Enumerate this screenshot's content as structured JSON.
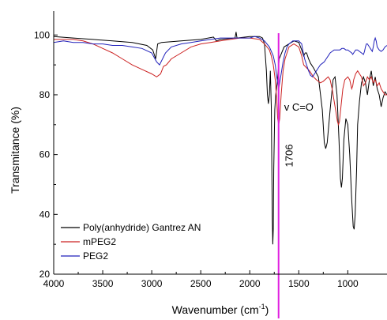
{
  "chart_data": {
    "type": "line",
    "xlabel": "Wavenumber (cm",
    "xlabel_sup": "-1",
    "xlabel_tail": ")",
    "ylabel": "Transmitance (%)",
    "xlim": [
      4000,
      600
    ],
    "ylim": [
      20,
      108
    ],
    "x_ticks": [
      "4000",
      "3500",
      "3000",
      "2500",
      "2000",
      "1500",
      "1000"
    ],
    "y_ticks": [
      "20",
      "40",
      "60",
      "80",
      "100"
    ],
    "annotations": {
      "marker_label": "1706",
      "marker_x": 1706,
      "band_label": "v C=O",
      "marker_color": "#e020e0"
    },
    "legend_position": "lower-left",
    "series": [
      {
        "name": "Poly(anhydride) Gantrez AN",
        "color": "#000000",
        "points": [
          [
            4000,
            99.5
          ],
          [
            3800,
            99
          ],
          [
            3600,
            98.5
          ],
          [
            3400,
            98
          ],
          [
            3200,
            97.5
          ],
          [
            3050,
            96.5
          ],
          [
            2990,
            95
          ],
          [
            2960,
            92
          ],
          [
            2940,
            97
          ],
          [
            2900,
            97.5
          ],
          [
            2700,
            98
          ],
          [
            2500,
            98.5
          ],
          [
            2370,
            99.3
          ],
          [
            2340,
            98
          ],
          [
            2300,
            98.5
          ],
          [
            2150,
            99
          ],
          [
            2140,
            101
          ],
          [
            2130,
            99
          ],
          [
            2000,
            99.5
          ],
          [
            1900,
            99.5
          ],
          [
            1870,
            99
          ],
          [
            1850,
            97
          ],
          [
            1830,
            88
          ],
          [
            1820,
            80
          ],
          [
            1810,
            77
          ],
          [
            1800,
            80
          ],
          [
            1790,
            88
          ],
          [
            1780,
            76
          ],
          [
            1775,
            55
          ],
          [
            1770,
            38
          ],
          [
            1765,
            30
          ],
          [
            1760,
            35
          ],
          [
            1755,
            55
          ],
          [
            1745,
            75
          ],
          [
            1735,
            80
          ],
          [
            1720,
            84
          ],
          [
            1700,
            92
          ],
          [
            1650,
            96
          ],
          [
            1600,
            97
          ],
          [
            1550,
            98
          ],
          [
            1500,
            97.5
          ],
          [
            1470,
            95
          ],
          [
            1450,
            93
          ],
          [
            1435,
            94
          ],
          [
            1420,
            94
          ],
          [
            1400,
            92
          ],
          [
            1380,
            90.5
          ],
          [
            1350,
            89
          ],
          [
            1300,
            86
          ],
          [
            1260,
            75
          ],
          [
            1240,
            64
          ],
          [
            1225,
            62
          ],
          [
            1210,
            64
          ],
          [
            1180,
            75
          ],
          [
            1150,
            85
          ],
          [
            1130,
            86
          ],
          [
            1110,
            80
          ],
          [
            1090,
            65
          ],
          [
            1075,
            52
          ],
          [
            1065,
            49
          ],
          [
            1055,
            52
          ],
          [
            1040,
            65
          ],
          [
            1020,
            72
          ],
          [
            1000,
            70
          ],
          [
            980,
            60
          ],
          [
            960,
            45
          ],
          [
            945,
            36
          ],
          [
            935,
            35
          ],
          [
            925,
            40
          ],
          [
            910,
            55
          ],
          [
            900,
            70
          ],
          [
            880,
            78
          ],
          [
            860,
            84
          ],
          [
            840,
            86
          ],
          [
            820,
            84
          ],
          [
            800,
            80
          ],
          [
            780,
            85
          ],
          [
            760,
            88
          ],
          [
            740,
            83
          ],
          [
            720,
            86
          ],
          [
            700,
            82
          ],
          [
            680,
            80
          ],
          [
            660,
            76
          ],
          [
            640,
            79
          ],
          [
            620,
            81
          ],
          [
            600,
            80
          ]
        ]
      },
      {
        "name": "mPEG2",
        "color": "#cc2222",
        "points": [
          [
            4000,
            98.5
          ],
          [
            3800,
            98.5
          ],
          [
            3700,
            98
          ],
          [
            3600,
            97
          ],
          [
            3500,
            95.5
          ],
          [
            3400,
            94
          ],
          [
            3300,
            92
          ],
          [
            3200,
            90
          ],
          [
            3100,
            88.5
          ],
          [
            3000,
            87
          ],
          [
            2950,
            86
          ],
          [
            2910,
            87
          ],
          [
            2880,
            89.5
          ],
          [
            2850,
            90
          ],
          [
            2800,
            92
          ],
          [
            2700,
            94
          ],
          [
            2600,
            96
          ],
          [
            2500,
            97
          ],
          [
            2400,
            97.5
          ],
          [
            2300,
            98
          ],
          [
            2200,
            98.5
          ],
          [
            2100,
            99
          ],
          [
            2000,
            99
          ],
          [
            1900,
            98.5
          ],
          [
            1850,
            97
          ],
          [
            1800,
            95
          ],
          [
            1780,
            93
          ],
          [
            1760,
            90
          ],
          [
            1740,
            85
          ],
          [
            1725,
            78
          ],
          [
            1715,
            72
          ],
          [
            1705,
            70
          ],
          [
            1695,
            72
          ],
          [
            1680,
            80
          ],
          [
            1660,
            88
          ],
          [
            1640,
            92
          ],
          [
            1620,
            94
          ],
          [
            1600,
            96
          ],
          [
            1550,
            97
          ],
          [
            1500,
            96
          ],
          [
            1470,
            93
          ],
          [
            1450,
            90
          ],
          [
            1420,
            89
          ],
          [
            1390,
            88
          ],
          [
            1350,
            86
          ],
          [
            1320,
            85
          ],
          [
            1300,
            84.5
          ],
          [
            1280,
            84
          ],
          [
            1250,
            84.5
          ],
          [
            1200,
            86
          ],
          [
            1180,
            85
          ],
          [
            1160,
            82
          ],
          [
            1140,
            78
          ],
          [
            1120,
            74
          ],
          [
            1105,
            71
          ],
          [
            1095,
            70
          ],
          [
            1085,
            71
          ],
          [
            1070,
            76
          ],
          [
            1050,
            82
          ],
          [
            1030,
            85
          ],
          [
            1000,
            86
          ],
          [
            980,
            85
          ],
          [
            960,
            82
          ],
          [
            950,
            83
          ],
          [
            940,
            85
          ],
          [
            920,
            87
          ],
          [
            900,
            88
          ],
          [
            880,
            87
          ],
          [
            860,
            86
          ],
          [
            840,
            83
          ],
          [
            820,
            84
          ],
          [
            800,
            86
          ],
          [
            780,
            85
          ],
          [
            760,
            86
          ],
          [
            740,
            84
          ],
          [
            720,
            85
          ],
          [
            700,
            83
          ],
          [
            680,
            84
          ],
          [
            660,
            82
          ],
          [
            640,
            81
          ],
          [
            620,
            80
          ],
          [
            600,
            80
          ]
        ]
      },
      {
        "name": "PEG2",
        "color": "#2222bb",
        "points": [
          [
            4000,
            97.5
          ],
          [
            3900,
            98
          ],
          [
            3800,
            97.5
          ],
          [
            3700,
            97.5
          ],
          [
            3600,
            97
          ],
          [
            3500,
            97
          ],
          [
            3400,
            96.5
          ],
          [
            3300,
            96.5
          ],
          [
            3200,
            96
          ],
          [
            3100,
            95.5
          ],
          [
            3000,
            94
          ],
          [
            2950,
            91
          ],
          [
            2920,
            90
          ],
          [
            2890,
            92
          ],
          [
            2860,
            94
          ],
          [
            2800,
            96
          ],
          [
            2700,
            97
          ],
          [
            2600,
            97.5
          ],
          [
            2500,
            98
          ],
          [
            2400,
            98.5
          ],
          [
            2300,
            99
          ],
          [
            2200,
            99
          ],
          [
            2100,
            99
          ],
          [
            2000,
            99
          ],
          [
            1950,
            99.5
          ],
          [
            1900,
            99
          ],
          [
            1850,
            98
          ],
          [
            1800,
            96
          ],
          [
            1760,
            93
          ],
          [
            1740,
            90
          ],
          [
            1725,
            86
          ],
          [
            1715,
            84
          ],
          [
            1705,
            82
          ],
          [
            1695,
            84
          ],
          [
            1680,
            87
          ],
          [
            1660,
            91
          ],
          [
            1640,
            94
          ],
          [
            1620,
            96
          ],
          [
            1600,
            97
          ],
          [
            1560,
            98
          ],
          [
            1500,
            98
          ],
          [
            1470,
            97
          ],
          [
            1460,
            95
          ],
          [
            1440,
            92
          ],
          [
            1420,
            90
          ],
          [
            1400,
            88
          ],
          [
            1380,
            86.5
          ],
          [
            1360,
            86
          ],
          [
            1340,
            87
          ],
          [
            1320,
            88
          ],
          [
            1300,
            89
          ],
          [
            1280,
            90
          ],
          [
            1260,
            90.5
          ],
          [
            1240,
            91
          ],
          [
            1220,
            92
          ],
          [
            1200,
            93
          ],
          [
            1180,
            94
          ],
          [
            1160,
            94.5
          ],
          [
            1140,
            95
          ],
          [
            1120,
            95
          ],
          [
            1100,
            95
          ],
          [
            1080,
            95
          ],
          [
            1060,
            95.5
          ],
          [
            1040,
            95.5
          ],
          [
            1020,
            95
          ],
          [
            1000,
            95
          ],
          [
            980,
            94.5
          ],
          [
            960,
            94
          ],
          [
            950,
            93.5
          ],
          [
            940,
            94
          ],
          [
            920,
            95
          ],
          [
            900,
            95
          ],
          [
            880,
            94.5
          ],
          [
            860,
            94
          ],
          [
            840,
            93.5
          ],
          [
            830,
            94.5
          ],
          [
            820,
            96
          ],
          [
            810,
            97
          ],
          [
            800,
            97
          ],
          [
            780,
            96
          ],
          [
            760,
            95
          ],
          [
            750,
            94.5
          ],
          [
            740,
            96
          ],
          [
            730,
            98
          ],
          [
            720,
            99
          ],
          [
            710,
            98
          ],
          [
            700,
            96
          ],
          [
            680,
            95
          ],
          [
            660,
            94.5
          ],
          [
            640,
            95
          ],
          [
            620,
            96
          ],
          [
            600,
            96.5
          ]
        ]
      }
    ]
  }
}
